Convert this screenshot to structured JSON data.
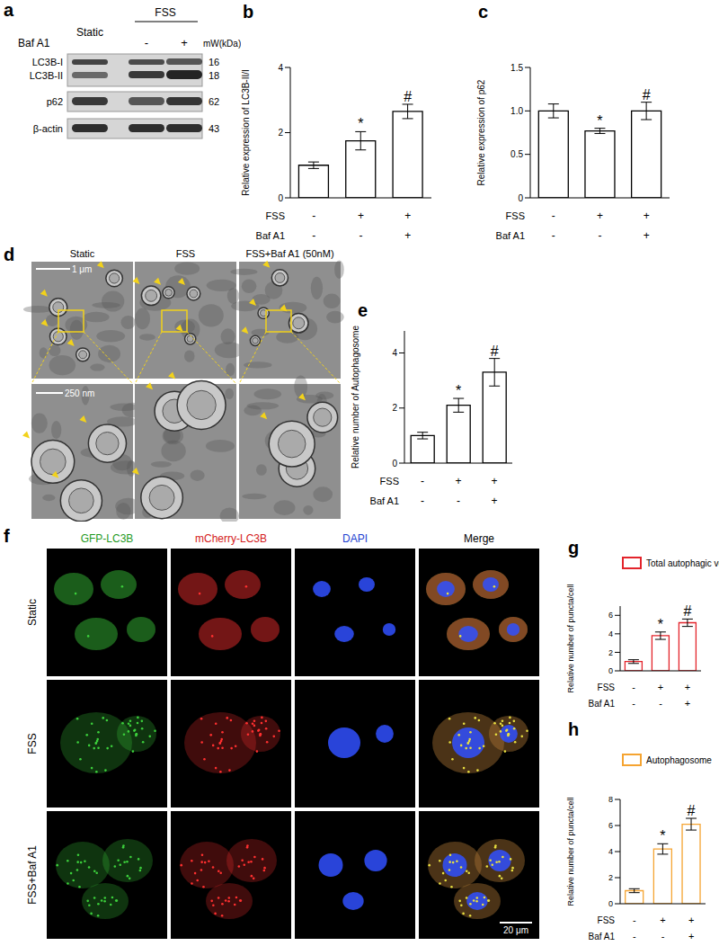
{
  "chart_data": [
    {
      "panel": "b",
      "type": "bar",
      "y_label": "Relative expression of LC3B-II/I",
      "categories": [
        null,
        null,
        null
      ],
      "values": [
        1,
        1.75,
        2.65
      ],
      "errors": [
        0.1,
        0.28,
        0.22
      ],
      "color": "#000000",
      "annotations": [
        {
          "index": 1,
          "text": "*"
        },
        {
          "index": 2,
          "text": "#"
        }
      ],
      "conditions": [
        {
          "label": "FSS",
          "signs": [
            "-",
            "+",
            "+"
          ]
        },
        {
          "label": "Baf A1",
          "signs": [
            "-",
            "-",
            "+"
          ]
        }
      ],
      "ylim": [
        0,
        4
      ],
      "yticks": [
        0,
        2,
        4
      ]
    },
    {
      "panel": "c",
      "type": "bar",
      "y_label": "Relative expression of p62",
      "categories": [
        null,
        null,
        null
      ],
      "values": [
        1,
        0.77,
        1
      ],
      "errors": [
        0.08,
        0.03,
        0.1
      ],
      "color": "#000000",
      "annotations": [
        {
          "index": 1,
          "text": "*"
        },
        {
          "index": 2,
          "text": "#"
        }
      ],
      "conditions": [
        {
          "label": "FSS",
          "signs": [
            "-",
            "+",
            "+"
          ]
        },
        {
          "label": "Baf A1",
          "signs": [
            "-",
            "-",
            "+"
          ]
        }
      ],
      "ylim": [
        0,
        1.5
      ],
      "yticks": [
        0,
        0.5,
        {
          "value": 1,
          "label": "1.0"
        },
        1.5
      ]
    },
    {
      "panel": "e",
      "type": "bar",
      "y_label": "Relative number of Autophagosome",
      "categories": [
        null,
        null,
        null
      ],
      "values": [
        1,
        2.1,
        3.3
      ],
      "errors": [
        0.12,
        0.25,
        0.5
      ],
      "color": "#000000",
      "annotations": [
        {
          "index": 1,
          "text": "*"
        },
        {
          "index": 2,
          "text": "#"
        }
      ],
      "conditions": [
        {
          "label": "FSS",
          "signs": [
            "-",
            "+",
            "+"
          ]
        },
        {
          "label": "Baf A1",
          "signs": [
            "-",
            "-",
            "+"
          ]
        }
      ],
      "ylim": [
        0,
        4.8
      ],
      "yticks": [
        0,
        2,
        4
      ]
    },
    {
      "panel": "g",
      "type": "bar",
      "y_label": "Relative number of puncta/cell",
      "categories": [
        null,
        null,
        null
      ],
      "series": [
        {
          "name": "Total autophagic vesicle",
          "color": "#e3242b",
          "values": [
            1,
            3.8,
            5.2
          ],
          "errors": [
            0.2,
            0.4,
            0.4
          ]
        }
      ],
      "legend": "top left",
      "annotations": [
        {
          "index": 1,
          "text": "*"
        },
        {
          "index": 2,
          "text": "#"
        }
      ],
      "conditions": [
        {
          "label": "FSS",
          "signs": [
            "-",
            "+",
            "+"
          ]
        },
        {
          "label": "Baf A1",
          "signs": [
            "-",
            "-",
            "+"
          ]
        }
      ],
      "ylim": [
        0,
        7
      ],
      "yticks": [
        0,
        2,
        4,
        6
      ]
    },
    {
      "panel": "h",
      "type": "bar",
      "y_label": "Relative number of puncta/cell",
      "categories": [
        null,
        null,
        null
      ],
      "series": [
        {
          "name": "Autophagosome",
          "color": "#f5a431",
          "values": [
            1,
            4.2,
            6.1
          ],
          "errors": [
            0.15,
            0.4,
            0.45
          ]
        }
      ],
      "legend": "top left",
      "annotations": [
        {
          "index": 1,
          "text": "*"
        },
        {
          "index": 2,
          "text": "#"
        }
      ],
      "conditions": [
        {
          "label": "FSS",
          "signs": [
            "-",
            "+",
            "+"
          ]
        },
        {
          "label": "Baf A1",
          "signs": [
            "-",
            "-",
            "+"
          ]
        }
      ],
      "ylim": [
        0,
        8
      ],
      "yticks": [
        0,
        2,
        4,
        6,
        8
      ]
    }
  ],
  "western_blot": {
    "panel": "a",
    "columns": [
      "Static",
      "FSS"
    ],
    "treatment": {
      "label": "Baf A1",
      "signs": [
        "-",
        "+"
      ]
    },
    "unit_header": "mW(kDa)",
    "rows": [
      {
        "label": "LC3B-I",
        "kda": 16
      },
      {
        "label": "LC3B-II",
        "kda": 18
      },
      {
        "label": "p62",
        "kda": 62
      },
      {
        "label": "β-actin",
        "kda": 43
      }
    ]
  },
  "tem": {
    "panel": "d",
    "columns": [
      "Static",
      "FSS",
      "FSS+Baf A1 (50nM)"
    ],
    "scale_bars": [
      "1 μm",
      "250 nm"
    ]
  },
  "fluorescence": {
    "panel": "f",
    "channels": [
      "GFP-LC3B",
      "mCherry-LC3B",
      "DAPI",
      "Merge"
    ],
    "rows": [
      "Static",
      "FSS",
      "FSS+Baf A1"
    ],
    "scale_bar": "20 μm"
  }
}
